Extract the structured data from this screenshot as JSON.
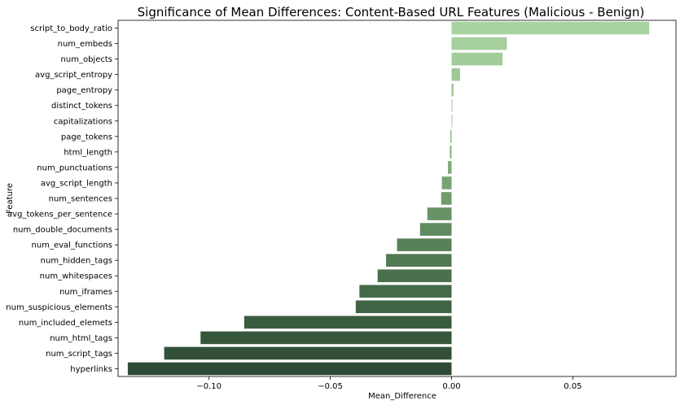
{
  "chart_data": {
    "type": "bar",
    "orientation": "horizontal",
    "title": "Significance of Mean Differences: Content-Based URL Features (Malicious - Benign)",
    "xlabel": "Mean_Difference",
    "ylabel": "Feature",
    "xlim": [
      -0.1375,
      0.0925
    ],
    "xticks": [
      -0.1,
      -0.05,
      0.0,
      0.05
    ],
    "xtick_labels": [
      "−0.10",
      "−0.05",
      "0.00",
      "0.05"
    ],
    "grid": false,
    "legend": "none",
    "categories": [
      "script_to_body_ratio",
      "num_embeds",
      "num_objects",
      "avg_script_entropy",
      "page_entropy",
      "distinct_tokens",
      "capitalizations",
      "page_tokens",
      "html_length",
      "num_punctuations",
      "avg_script_length",
      "num_sentences",
      "avg_tokens_per_sentence",
      "num_double_documents",
      "num_eval_functions",
      "num_hidden_tags",
      "num_whitespaces",
      "num_iframes",
      "num_suspicious_elements",
      "num_included_elemets",
      "num_html_tags",
      "num_script_tags",
      "hyperlinks"
    ],
    "values": [
      0.0815,
      0.0228,
      0.021,
      0.0035,
      0.0008,
      0.0003,
      0.0002,
      -0.0005,
      -0.0007,
      -0.0015,
      -0.004,
      -0.0043,
      -0.01,
      -0.013,
      -0.0225,
      -0.027,
      -0.0305,
      -0.038,
      -0.0395,
      -0.0855,
      -0.1035,
      -0.1185,
      -0.1335
    ],
    "colors": [
      "#a9d2a1",
      "#a5cf9d",
      "#a2cc9a",
      "#9ec996",
      "#9ac592",
      "#95c18e",
      "#90bc89",
      "#8bb785",
      "#86b180",
      "#7faa7a",
      "#78a374",
      "#709b6d",
      "#689366",
      "#608a5f",
      "#588158",
      "#517952",
      "#4a714c",
      "#446a47",
      "#3f6343",
      "#3a5c3f",
      "#36563b",
      "#325038",
      "#2f4b35"
    ]
  }
}
